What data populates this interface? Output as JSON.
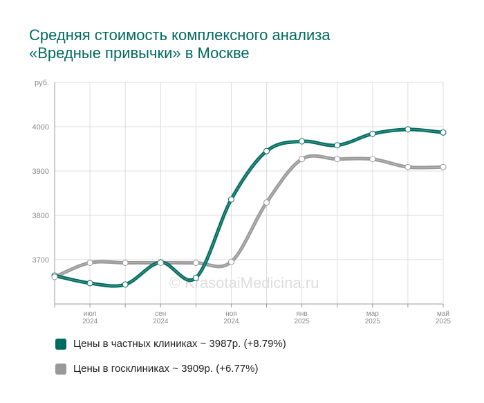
{
  "chart_data": {
    "type": "line",
    "title": "Средняя стоимость комплексного анализа\n«Вредные привычки» в Москве",
    "categories": [
      null,
      "июл\n2024",
      null,
      "сен\n2024",
      null,
      "ноя\n2024",
      null,
      "янв\n2025",
      null,
      "мар\n2025",
      null,
      "май\n2025"
    ],
    "series": [
      {
        "name": "Цены в частных клиниках ~ 3987р. (+8.79%)",
        "color": "#006b5f",
        "values": [
          3664,
          3647,
          3644,
          3694,
          3659,
          3836,
          3945,
          3967,
          3958,
          3984,
          3994,
          3987
        ]
      },
      {
        "name": "Цены в госклиниках ~ 3909р. (+6.77%)",
        "color": "#999999",
        "values": [
          3661,
          3693,
          3693,
          3693,
          3693,
          3695,
          3829,
          3927,
          3927,
          3927,
          3909,
          3909
        ]
      }
    ],
    "ylim": [
      3600,
      4100
    ],
    "yticks": [
      3700,
      3800,
      3900,
      4000,
      {
        "value": 4100,
        "label": "руб."
      }
    ],
    "grid": true,
    "watermark": "© KrasotaiMedicina.ru"
  }
}
